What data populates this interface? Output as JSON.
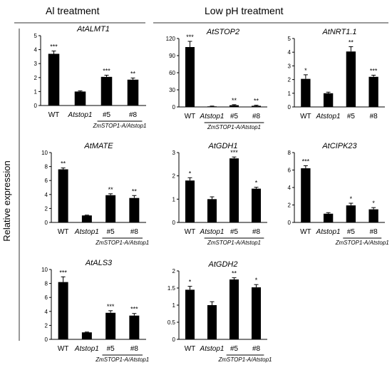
{
  "figure": {
    "section_left": "Al treatment",
    "section_right": "Low pH treatment",
    "ylabel": "Relative expression"
  },
  "chart_data": [
    {
      "type": "bar",
      "title": "AtALMT1",
      "categories": [
        "WT",
        "Atstop1",
        "#5",
        "#8"
      ],
      "values": [
        3.7,
        1.0,
        2.05,
        1.85
      ],
      "errors": [
        0.2,
        0.05,
        0.12,
        0.12
      ],
      "significance": [
        "***",
        "",
        "***",
        "**"
      ],
      "ylim": [
        0,
        5
      ],
      "yticks": [
        0,
        1,
        2,
        3,
        4,
        5
      ],
      "group_label": "ZmSTOP1-A/Atstop1",
      "group_span": [
        2,
        3
      ]
    },
    {
      "type": "bar",
      "title": "AtSTOP2",
      "categories": [
        "WT",
        "Atstop1",
        "#5",
        "#8"
      ],
      "values": [
        105,
        1,
        3,
        2
      ],
      "errors": [
        10,
        0.5,
        1,
        1
      ],
      "significance": [
        "***",
        "",
        "**",
        "**"
      ],
      "ylim": [
        0,
        120
      ],
      "yticks": [
        0,
        30,
        60,
        90,
        120
      ],
      "group_label": "ZmSTOP1-A/Atstop1",
      "group_span": [
        1,
        3
      ]
    },
    {
      "type": "bar",
      "title": "AtNRT1.1",
      "categories": [
        "WT",
        "Atstop1",
        "#5",
        "#8"
      ],
      "values": [
        2.05,
        1.0,
        4.05,
        2.2
      ],
      "errors": [
        0.3,
        0.08,
        0.35,
        0.12
      ],
      "significance": [
        "*",
        "",
        "**",
        "***"
      ],
      "ylim": [
        0,
        5
      ],
      "yticks": [
        0,
        1,
        2,
        3,
        4,
        5
      ],
      "group_label": "",
      "group_span": null
    },
    {
      "type": "bar",
      "title": "AtMATE",
      "categories": [
        "WT",
        "Atstop1",
        "#5",
        "#8"
      ],
      "values": [
        7.6,
        1.0,
        3.9,
        3.5
      ],
      "errors": [
        0.2,
        0.05,
        0.2,
        0.35
      ],
      "significance": [
        "**",
        "",
        "**",
        "**"
      ],
      "ylim": [
        0,
        10
      ],
      "yticks": [
        0,
        2,
        4,
        6,
        8,
        10
      ],
      "group_label": "ZmSTOP1-A/Atstop1",
      "group_span": [
        2,
        3
      ]
    },
    {
      "type": "bar",
      "title": "AtGDH1",
      "categories": [
        "WT",
        "Atstop1",
        "#5",
        "#8"
      ],
      "values": [
        1.8,
        1.0,
        2.75,
        1.45
      ],
      "errors": [
        0.12,
        0.1,
        0.06,
        0.06
      ],
      "significance": [
        "*",
        "",
        "***",
        "*"
      ],
      "ylim": [
        0,
        3
      ],
      "yticks": [
        0,
        1,
        2,
        3
      ],
      "group_label": "ZmSTOP1-A/Atstop1",
      "group_span": [
        1,
        3
      ]
    },
    {
      "type": "bar",
      "title": "AtCIPK23",
      "categories": [
        "WT",
        "Atstop1",
        "#5",
        "#8"
      ],
      "values": [
        6.2,
        1.0,
        1.95,
        1.5
      ],
      "errors": [
        0.3,
        0.12,
        0.25,
        0.2
      ],
      "significance": [
        "***",
        "",
        "*",
        "*"
      ],
      "ylim": [
        0,
        8
      ],
      "yticks": [
        0,
        2,
        4,
        6,
        8
      ],
      "group_label": "ZmSTOP1-A/Atstop1",
      "group_span": [
        2,
        3
      ]
    },
    {
      "type": "bar",
      "title": "AtALS3",
      "categories": [
        "WT",
        "Atstop1",
        "#5",
        "#8"
      ],
      "values": [
        8.2,
        1.0,
        3.8,
        3.4
      ],
      "errors": [
        0.75,
        0.05,
        0.3,
        0.3
      ],
      "significance": [
        "***",
        "",
        "***",
        "***"
      ],
      "ylim": [
        0,
        10
      ],
      "yticks": [
        0,
        2,
        4,
        6,
        8,
        10
      ],
      "group_label": "ZmSTOP1-A/Atstop1",
      "group_span": [
        2,
        3
      ]
    },
    {
      "type": "bar",
      "title": "AtGDH2",
      "categories": [
        "WT",
        "Atstop1",
        "#5",
        "#8"
      ],
      "values": [
        1.45,
        1.0,
        1.75,
        1.52
      ],
      "errors": [
        0.1,
        0.1,
        0.05,
        0.08
      ],
      "significance": [
        "*",
        "",
        "**",
        "*"
      ],
      "ylim": [
        0,
        2
      ],
      "yticks": [
        0,
        0.5,
        1,
        1.5,
        2
      ],
      "group_label": "ZmSTOP1-A/Atstop1",
      "group_span": [
        2,
        3
      ]
    }
  ]
}
